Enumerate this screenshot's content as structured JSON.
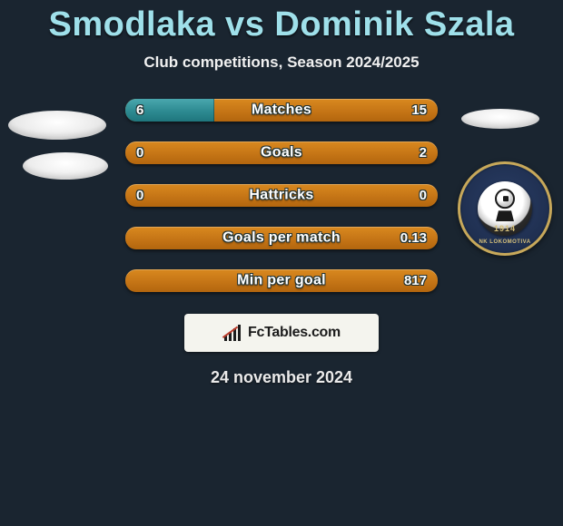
{
  "title": "Smodlaka vs Dominik Szala",
  "subtitle": "Club competitions, Season 2024/2025",
  "date": "24 november 2024",
  "brand": {
    "text": "FcTables.com"
  },
  "crest": {
    "year": "1914",
    "name": "NK LOKOMOTIVA"
  },
  "colors": {
    "title": "#9fe0ea",
    "fill_left": "#2d8a91",
    "fill_right": "#c57516",
    "background": "#1a2530",
    "brand_bg": "#f4f4ee"
  },
  "bars": [
    {
      "label": "Matches",
      "left": "6",
      "right": "15",
      "pct_left": 28.6
    },
    {
      "label": "Goals",
      "left": "0",
      "right": "2",
      "pct_left": 0
    },
    {
      "label": "Hattricks",
      "left": "0",
      "right": "0",
      "pct_left": 0
    },
    {
      "label": "Goals per match",
      "left": "",
      "right": "0.13",
      "pct_left": 0
    },
    {
      "label": "Min per goal",
      "left": "",
      "right": "817",
      "pct_left": 0
    }
  ]
}
